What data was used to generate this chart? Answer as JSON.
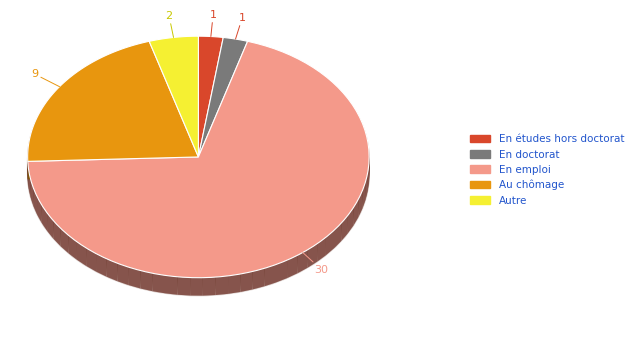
{
  "labels": [
    "En études hors doctorat",
    "En doctorat",
    "En emploi",
    "Au chômage",
    "Autre"
  ],
  "values": [
    1,
    1,
    30,
    9,
    2
  ],
  "colors": [
    "#d9472b",
    "#7a7a7a",
    "#f4998a",
    "#e8960e",
    "#f5f032"
  ],
  "shadow_color": "#5a2010",
  "startangle": 90,
  "figsize": [
    6.4,
    3.4
  ],
  "dpi": 100,
  "label_colors": [
    "#f4998a",
    "#f4998a",
    "#f4998a",
    "#e8960e",
    "#c8b800"
  ]
}
